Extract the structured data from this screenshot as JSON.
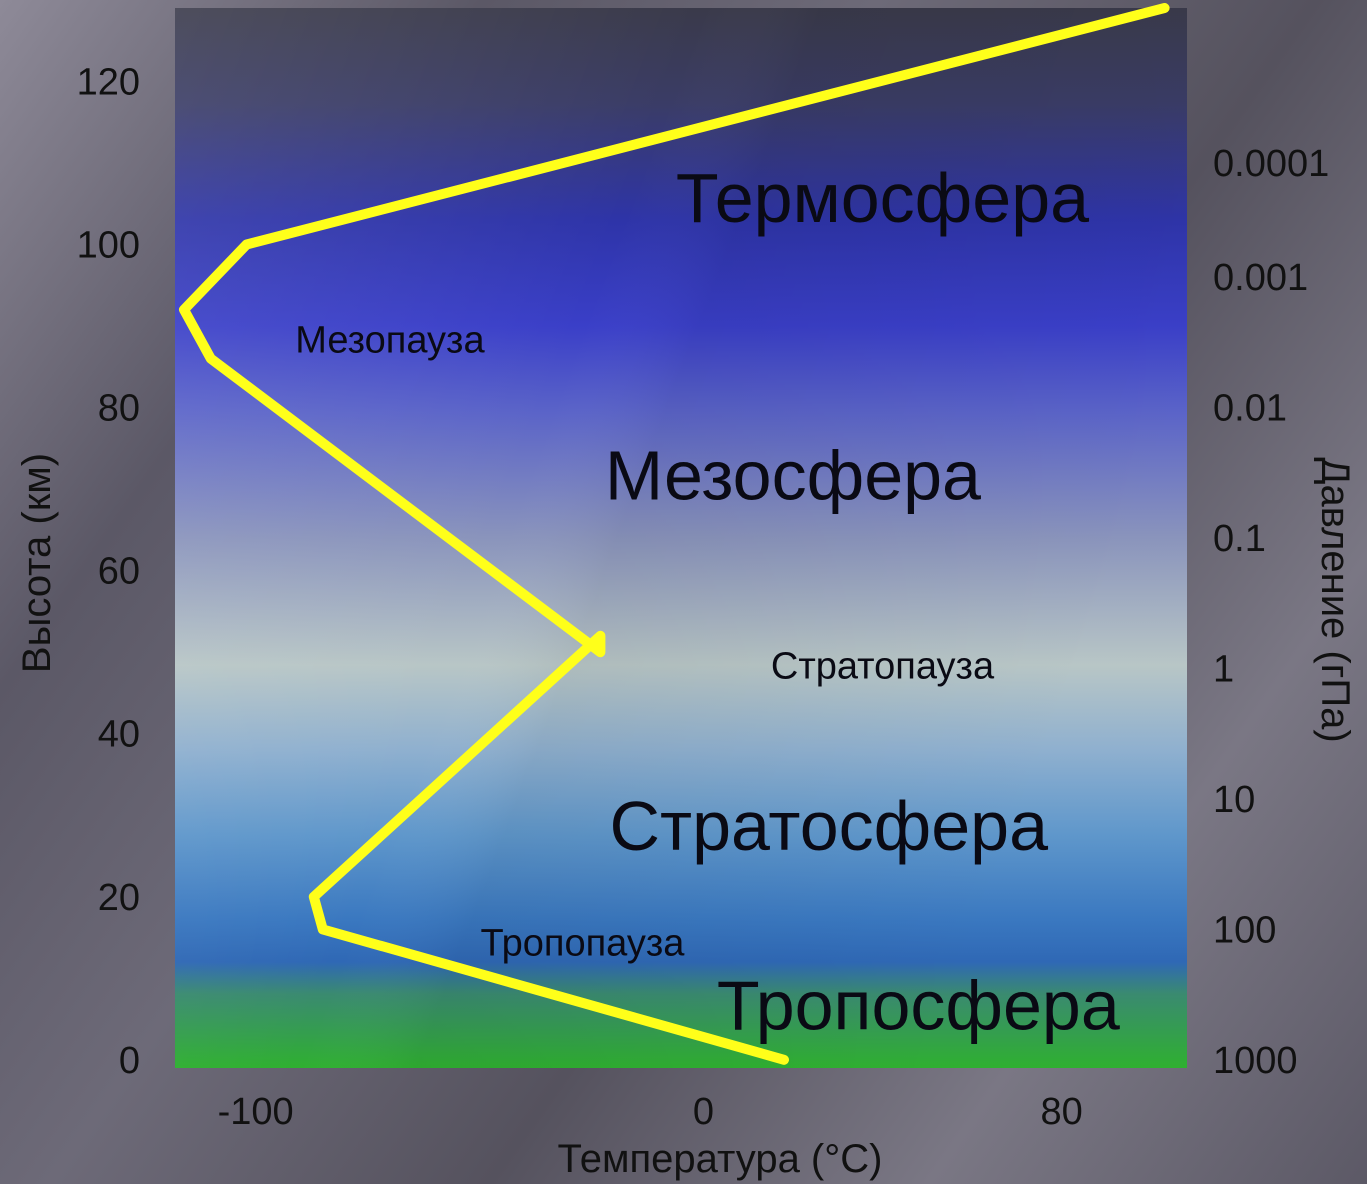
{
  "chart_data": {
    "type": "line",
    "xlabel": "Температура (°C)",
    "ylabel": "Высота (км)",
    "y2label": "Давление (гПа)",
    "xlim": [
      -118,
      108
    ],
    "ylim": [
      -1,
      129
    ],
    "x_ticks": [
      {
        "value": -100,
        "label": "-100"
      },
      {
        "value": 0,
        "label": "0"
      },
      {
        "value": 80,
        "label": "80"
      }
    ],
    "y_ticks": [
      {
        "value": 0,
        "label": "0"
      },
      {
        "value": 20,
        "label": "20"
      },
      {
        "value": 40,
        "label": "40"
      },
      {
        "value": 60,
        "label": "60"
      },
      {
        "value": 80,
        "label": "80"
      },
      {
        "value": 100,
        "label": "100"
      },
      {
        "value": 120,
        "label": "120"
      }
    ],
    "pressure_ticks": [
      {
        "altitude": 0,
        "label": "1000"
      },
      {
        "altitude": 16,
        "label": "100"
      },
      {
        "altitude": 32,
        "label": "10"
      },
      {
        "altitude": 48,
        "label": "1"
      },
      {
        "altitude": 64,
        "label": "0.1"
      },
      {
        "altitude": 80,
        "label": "0.01"
      },
      {
        "altitude": 96,
        "label": "0.001"
      },
      {
        "altitude": 110,
        "label": "0.0001"
      }
    ],
    "series": [
      {
        "color": "#ffff1a",
        "points": [
          {
            "x": 18,
            "y": 0
          },
          {
            "x": -85,
            "y": 16
          },
          {
            "x": -87,
            "y": 20
          },
          {
            "x": -23,
            "y": 52
          },
          {
            "x": -23,
            "y": 50
          },
          {
            "x": -110,
            "y": 86
          },
          {
            "x": -116,
            "y": 92
          },
          {
            "x": -102,
            "y": 100
          },
          {
            "x": 103,
            "y": 129
          }
        ]
      }
    ],
    "annotations": [
      {
        "text": "Термосфера",
        "x": 40,
        "y": 105,
        "style": "big"
      },
      {
        "text": "Мезопауза",
        "x": -70,
        "y": 88,
        "style": "small"
      },
      {
        "text": "Мезосфера",
        "x": 20,
        "y": 71,
        "style": "big"
      },
      {
        "text": "Стратопауза",
        "x": 40,
        "y": 48,
        "style": "small"
      },
      {
        "text": "Стратосфера",
        "x": 28,
        "y": 28,
        "style": "big"
      },
      {
        "text": "Тропопауза",
        "x": -27,
        "y": 14,
        "style": "small"
      },
      {
        "text": "Тропосфера",
        "x": 48,
        "y": 6,
        "style": "big"
      }
    ],
    "grid": false
  }
}
